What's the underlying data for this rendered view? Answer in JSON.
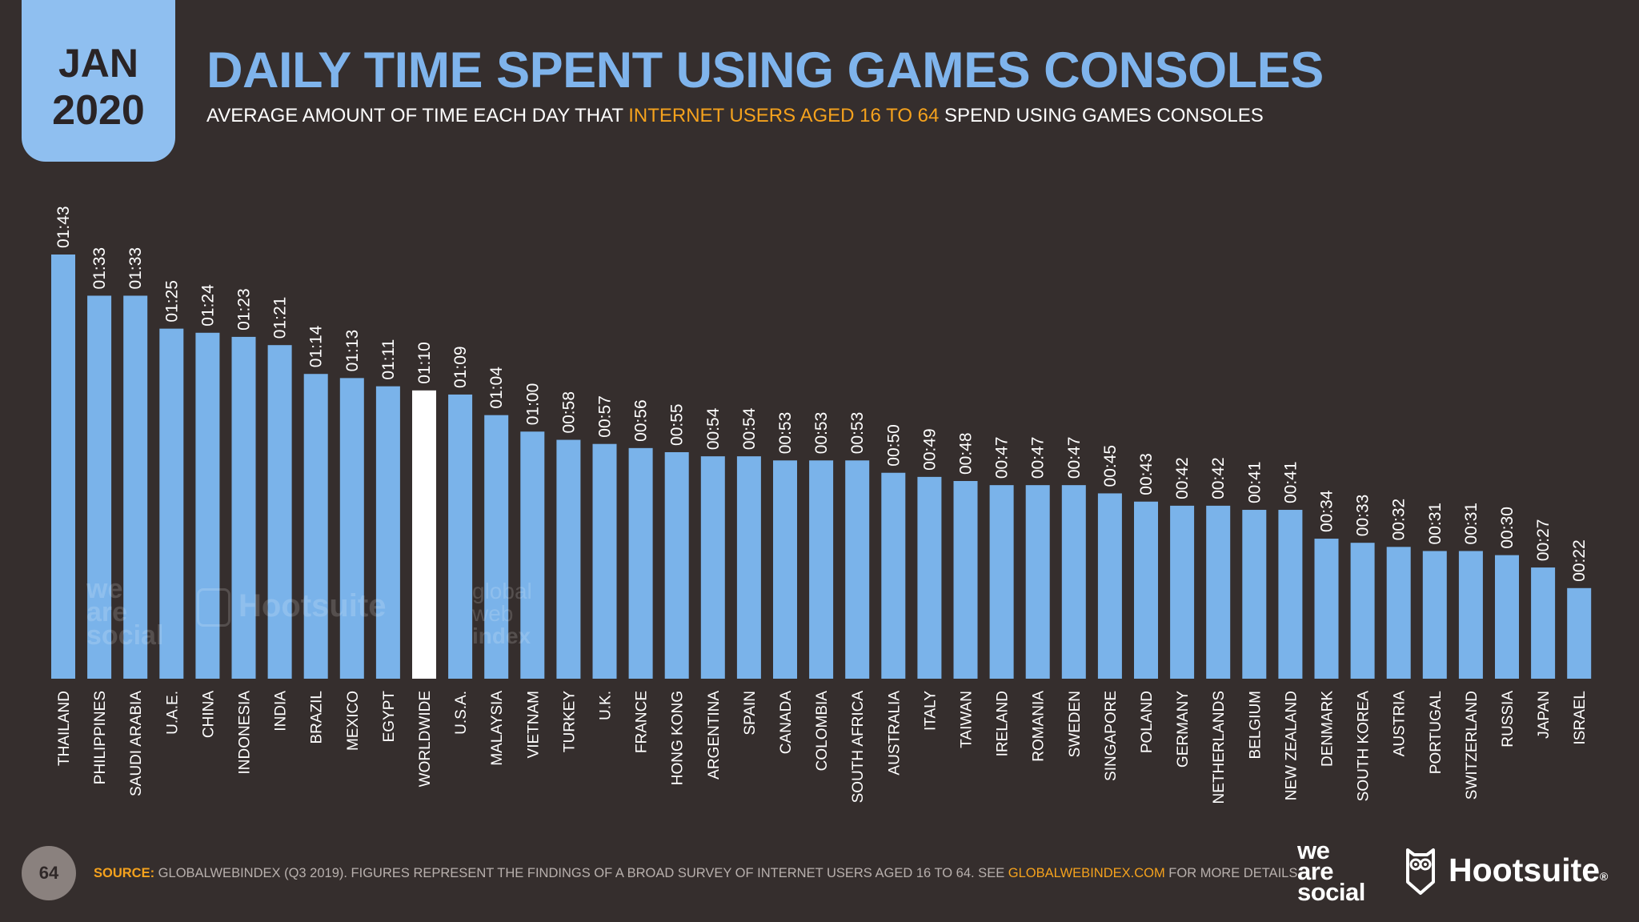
{
  "badge": {
    "month": "JAN",
    "year": "2020"
  },
  "title": "DAILY TIME SPENT USING GAMES CONSOLES",
  "subtitle": {
    "before": "AVERAGE AMOUNT OF TIME EACH DAY THAT ",
    "highlight": "INTERNET USERS AGED 16 TO 64",
    "after": " SPEND USING GAMES CONSOLES"
  },
  "colors": {
    "bar": "#7ab3ea",
    "highlight_bar": "#ffffff",
    "accent": "#f5a21d",
    "background": "#352e2d"
  },
  "chart_data": {
    "type": "bar",
    "title": "DAILY TIME SPENT USING GAMES CONSOLES",
    "xlabel": "",
    "ylabel": "",
    "unit": "hh:mm",
    "ylim": [
      0,
      103
    ],
    "grid": false,
    "highlight": "WORLDWIDE",
    "categories": [
      "THAILAND",
      "PHILIPPINES",
      "SAUDI ARABIA",
      "U.A.E.",
      "CHINA",
      "INDONESIA",
      "INDIA",
      "BRAZIL",
      "MEXICO",
      "EGYPT",
      "WORLDWIDE",
      "U.S.A.",
      "MALAYSIA",
      "VIETNAM",
      "TURKEY",
      "U.K.",
      "FRANCE",
      "HONG KONG",
      "ARGENTINA",
      "SPAIN",
      "CANADA",
      "COLOMBIA",
      "SOUTH AFRICA",
      "AUSTRALIA",
      "ITALY",
      "TAIWAN",
      "IRELAND",
      "ROMANIA",
      "SWEDEN",
      "SINGAPORE",
      "POLAND",
      "GERMANY",
      "NETHERLANDS",
      "BELGIUM",
      "NEW ZEALAND",
      "DENMARK",
      "SOUTH KOREA",
      "AUSTRIA",
      "PORTUGAL",
      "SWITZERLAND",
      "RUSSIA",
      "JAPAN",
      "ISRAEL"
    ],
    "values": [
      103,
      93,
      93,
      85,
      84,
      83,
      81,
      74,
      73,
      71,
      70,
      69,
      64,
      60,
      58,
      57,
      56,
      55,
      54,
      54,
      53,
      53,
      53,
      50,
      49,
      48,
      47,
      47,
      47,
      45,
      43,
      42,
      42,
      41,
      41,
      34,
      33,
      32,
      31,
      31,
      30,
      27,
      22
    ],
    "labels": [
      "01:43",
      "01:33",
      "01:33",
      "01:25",
      "01:24",
      "01:23",
      "01:21",
      "01:14",
      "01:13",
      "01:11",
      "01:10",
      "01:09",
      "01:04",
      "01:00",
      "00:58",
      "00:57",
      "00:56",
      "00:55",
      "00:54",
      "00:54",
      "00:53",
      "00:53",
      "00:53",
      "00:50",
      "00:49",
      "00:48",
      "00:47",
      "00:47",
      "00:47",
      "00:45",
      "00:43",
      "00:42",
      "00:42",
      "00:41",
      "00:41",
      "00:34",
      "00:33",
      "00:32",
      "00:31",
      "00:31",
      "00:30",
      "00:27",
      "00:22"
    ]
  },
  "watermarks": {
    "was": [
      "we",
      "are",
      "social"
    ],
    "hootsuite": "Hootsuite",
    "gwi": [
      "global",
      "web",
      "index"
    ]
  },
  "footer": {
    "page_number": "64",
    "source_label": "SOURCE:",
    "source_text": " GLOBALWEBINDEX (Q3 2019). FIGURES REPRESENT THE FINDINGS OF A BROAD SURVEY OF INTERNET USERS AGED 16 TO 64. SEE ",
    "source_link": "GLOBALWEBINDEX.COM",
    "source_after": " FOR MORE DETAILS.",
    "logo_was": [
      "we",
      "are",
      "social"
    ],
    "logo_hootsuite": "Hootsuite",
    "logo_registered": "®"
  }
}
